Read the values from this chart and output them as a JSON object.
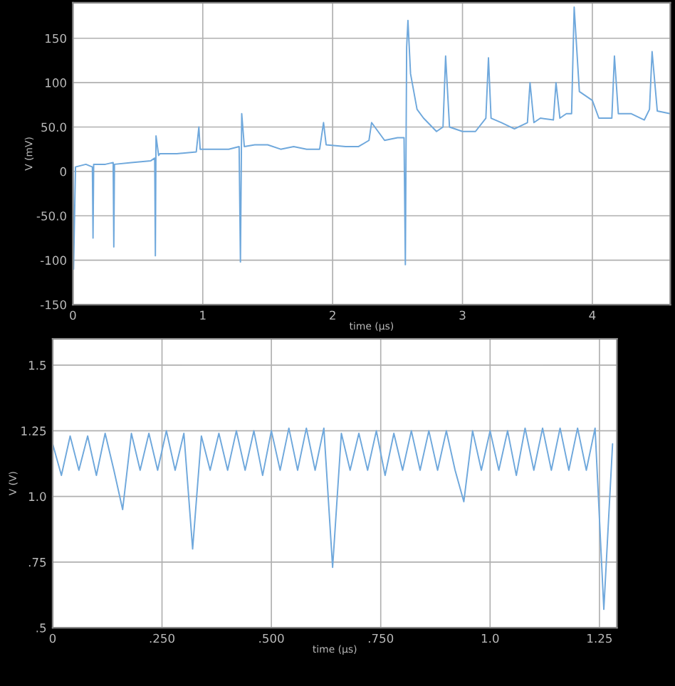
{
  "chart_data": [
    {
      "type": "line",
      "xlabel": "time (µs)",
      "ylabel": "V (mV)",
      "xlim": [
        0,
        4.6
      ],
      "ylim": [
        -150,
        190
      ],
      "xticks": [
        0,
        1,
        2,
        3,
        4
      ],
      "yticks": [
        150,
        100,
        {
          "value": 50,
          "label": "50.0"
        },
        0,
        {
          "value": -50,
          "label": "-50.0"
        },
        -100,
        -150
      ],
      "grid": true,
      "series": [
        {
          "color": "#6fa8dc",
          "x": [
            0,
            0.005,
            0.02,
            0.1,
            0.15,
            0.155,
            0.16,
            0.25,
            0.31,
            0.315,
            0.32,
            0.45,
            0.6,
            0.63,
            0.635,
            0.64,
            0.66,
            0.67,
            0.8,
            0.95,
            0.97,
            0.98,
            1.1,
            1.2,
            1.28,
            1.29,
            1.3,
            1.32,
            1.4,
            1.5,
            1.6,
            1.7,
            1.8,
            1.9,
            1.93,
            1.95,
            2.1,
            2.2,
            2.28,
            2.3,
            2.4,
            2.5,
            2.55,
            2.56,
            2.57,
            2.58,
            2.6,
            2.65,
            2.7,
            2.8,
            2.85,
            2.87,
            2.9,
            3.0,
            3.1,
            3.18,
            3.2,
            3.22,
            3.3,
            3.4,
            3.5,
            3.52,
            3.55,
            3.6,
            3.7,
            3.72,
            3.75,
            3.8,
            3.84,
            3.86,
            3.9,
            3.95,
            4.0,
            4.05,
            4.15,
            4.17,
            4.2,
            4.3,
            4.4,
            4.44,
            4.46,
            4.5,
            4.6
          ],
          "values": [
            5,
            -110,
            5,
            8,
            5,
            -75,
            8,
            8,
            10,
            -85,
            8,
            10,
            12,
            15,
            -95,
            40,
            18,
            20,
            20,
            22,
            50,
            25,
            25,
            25,
            28,
            -102,
            65,
            28,
            30,
            30,
            25,
            28,
            25,
            25,
            55,
            30,
            28,
            28,
            35,
            55,
            35,
            38,
            38,
            -105,
            140,
            170,
            110,
            70,
            60,
            45,
            50,
            130,
            50,
            45,
            45,
            60,
            128,
            60,
            55,
            48,
            55,
            100,
            55,
            60,
            58,
            100,
            60,
            65,
            65,
            185,
            90,
            85,
            80,
            60,
            60,
            130,
            65,
            65,
            58,
            70,
            135,
            68,
            65
          ]
        }
      ]
    },
    {
      "type": "line",
      "xlabel": "time (µs)",
      "ylabel": "V (V)",
      "xlim": [
        0,
        1.29
      ],
      "ylim": [
        0.5,
        1.6
      ],
      "xticks": [
        0,
        {
          "value": 0.25,
          "label": ".250"
        },
        {
          "value": 0.5,
          "label": ".500"
        },
        {
          "value": 0.75,
          "label": ".750"
        },
        {
          "value": 1.0,
          "label": "1.0"
        },
        1.25
      ],
      "yticks": [
        1.5,
        1.25,
        {
          "value": 1.0,
          "label": "1.0"
        },
        {
          "value": 0.75,
          "label": ".75"
        },
        {
          "value": 0.5,
          "label": ".5"
        }
      ],
      "grid": true,
      "series": [
        {
          "color": "#6fa8dc",
          "x": [
            0,
            0.02,
            0.04,
            0.06,
            0.08,
            0.1,
            0.12,
            0.14,
            0.16,
            0.18,
            0.2,
            0.22,
            0.24,
            0.26,
            0.28,
            0.3,
            0.32,
            0.34,
            0.36,
            0.38,
            0.4,
            0.42,
            0.44,
            0.46,
            0.48,
            0.5,
            0.52,
            0.54,
            0.56,
            0.58,
            0.6,
            0.62,
            0.64,
            0.66,
            0.68,
            0.7,
            0.72,
            0.74,
            0.76,
            0.78,
            0.8,
            0.82,
            0.84,
            0.86,
            0.88,
            0.9,
            0.92,
            0.94,
            0.96,
            0.98,
            1.0,
            1.02,
            1.04,
            1.06,
            1.08,
            1.1,
            1.12,
            1.14,
            1.16,
            1.18,
            1.2,
            1.22,
            1.24,
            1.26,
            1.28
          ],
          "values": [
            1.2,
            1.08,
            1.23,
            1.1,
            1.23,
            1.08,
            1.24,
            1.1,
            0.95,
            1.24,
            1.1,
            1.24,
            1.1,
            1.25,
            1.1,
            1.24,
            0.8,
            1.23,
            1.1,
            1.24,
            1.1,
            1.25,
            1.1,
            1.25,
            1.08,
            1.25,
            1.1,
            1.26,
            1.1,
            1.26,
            1.1,
            1.26,
            0.73,
            1.24,
            1.1,
            1.24,
            1.1,
            1.25,
            1.08,
            1.24,
            1.1,
            1.25,
            1.1,
            1.25,
            1.1,
            1.25,
            1.1,
            0.98,
            1.25,
            1.1,
            1.25,
            1.1,
            1.25,
            1.08,
            1.26,
            1.1,
            1.26,
            1.1,
            1.26,
            1.1,
            1.26,
            1.1,
            1.26,
            0.57,
            1.2
          ]
        }
      ]
    }
  ]
}
